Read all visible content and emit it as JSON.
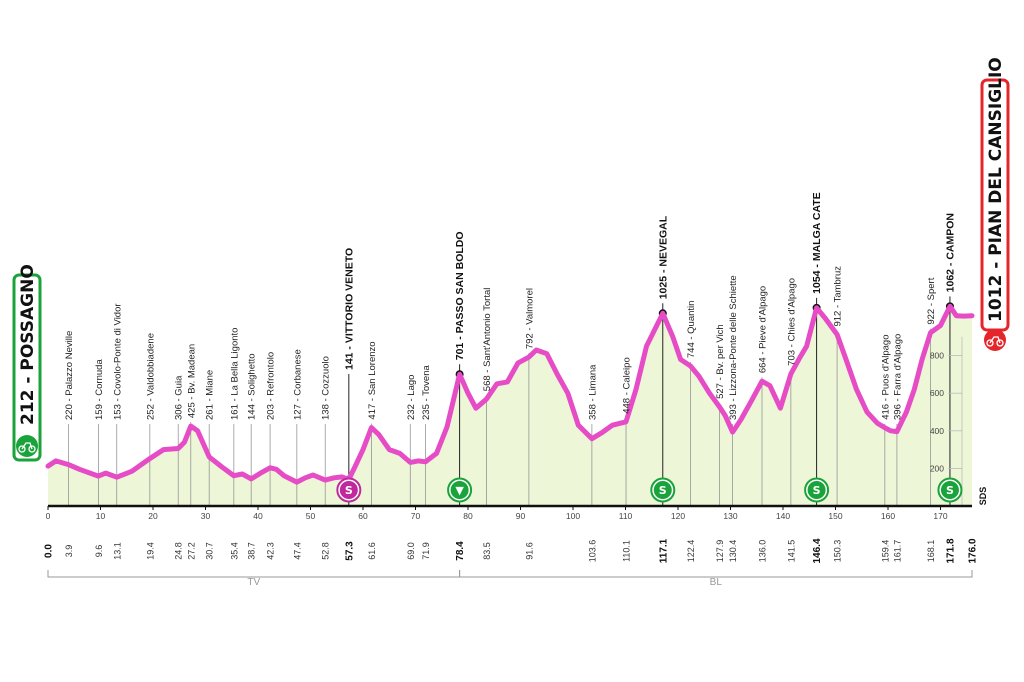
{
  "chart_data": {
    "type": "area",
    "xlim": [
      0,
      176
    ],
    "ylim": [
      0,
      1000
    ],
    "x_ticks": [
      0,
      10,
      20,
      30,
      40,
      50,
      60,
      70,
      80,
      90,
      100,
      110,
      120,
      130,
      140,
      150,
      160,
      170
    ],
    "y_ticks": [
      200,
      400,
      600,
      800
    ],
    "colors": {
      "profile_line": "#e64cc6",
      "profile_fill": "#eef6d8",
      "start_green": "#1aa33a",
      "finish_red": "#e4252a",
      "sprint_magenta": "#c0289e"
    },
    "profile": [
      [
        0,
        212
      ],
      [
        1.5,
        240
      ],
      [
        3.9,
        220
      ],
      [
        6,
        195
      ],
      [
        9.6,
        159
      ],
      [
        11,
        175
      ],
      [
        13.1,
        153
      ],
      [
        16,
        185
      ],
      [
        19.4,
        252
      ],
      [
        22,
        300
      ],
      [
        24.8,
        306
      ],
      [
        26,
        340
      ],
      [
        27.2,
        425
      ],
      [
        28.5,
        400
      ],
      [
        30.7,
        261
      ],
      [
        33,
        210
      ],
      [
        35.4,
        161
      ],
      [
        37,
        170
      ],
      [
        38.7,
        144
      ],
      [
        40.5,
        175
      ],
      [
        42.3,
        203
      ],
      [
        43.5,
        195
      ],
      [
        45,
        160
      ],
      [
        47.4,
        127
      ],
      [
        49,
        150
      ],
      [
        50.5,
        165
      ],
      [
        52.8,
        138
      ],
      [
        54.5,
        150
      ],
      [
        56,
        155
      ],
      [
        57.3,
        141
      ],
      [
        58.5,
        210
      ],
      [
        60,
        300
      ],
      [
        61.6,
        417
      ],
      [
        63,
        380
      ],
      [
        65,
        300
      ],
      [
        67,
        280
      ],
      [
        69,
        232
      ],
      [
        70.5,
        240
      ],
      [
        71.9,
        235
      ],
      [
        74,
        280
      ],
      [
        76,
        420
      ],
      [
        78.4,
        701
      ],
      [
        80,
        600
      ],
      [
        81.5,
        520
      ],
      [
        83.5,
        568
      ],
      [
        85.5,
        650
      ],
      [
        87.5,
        660
      ],
      [
        89.5,
        760
      ],
      [
        91.6,
        792
      ],
      [
        93,
        830
      ],
      [
        95,
        810
      ],
      [
        97,
        700
      ],
      [
        99,
        600
      ],
      [
        101,
        430
      ],
      [
        103.6,
        358
      ],
      [
        105.5,
        390
      ],
      [
        107.5,
        430
      ],
      [
        110.1,
        448
      ],
      [
        112,
        620
      ],
      [
        114,
        850
      ],
      [
        117.1,
        1025
      ],
      [
        119,
        900
      ],
      [
        120.5,
        780
      ],
      [
        122.4,
        744
      ],
      [
        124,
        690
      ],
      [
        126,
        600
      ],
      [
        127.9,
        527
      ],
      [
        129,
        480
      ],
      [
        130.4,
        393
      ],
      [
        132,
        460
      ],
      [
        134,
        560
      ],
      [
        136,
        664
      ],
      [
        137.5,
        640
      ],
      [
        139.5,
        520
      ],
      [
        141.5,
        703
      ],
      [
        143,
        780
      ],
      [
        144.5,
        850
      ],
      [
        146.4,
        1054
      ],
      [
        148,
        1000
      ],
      [
        150.3,
        912
      ],
      [
        152,
        780
      ],
      [
        154,
        620
      ],
      [
        156,
        500
      ],
      [
        158,
        440
      ],
      [
        159.4,
        416
      ],
      [
        160.5,
        400
      ],
      [
        161.7,
        396
      ],
      [
        163.5,
        500
      ],
      [
        165,
        620
      ],
      [
        166.5,
        780
      ],
      [
        168.1,
        922
      ],
      [
        170,
        960
      ],
      [
        171.8,
        1062
      ],
      [
        173,
        1012
      ],
      [
        174.5,
        1010
      ],
      [
        176,
        1012
      ]
    ],
    "waypoints": [
      {
        "km": "3.9",
        "x": 3.9,
        "alt": "220",
        "name": "Palazzo Neville",
        "bold": false
      },
      {
        "km": "9.6",
        "x": 9.6,
        "alt": "159",
        "name": "Cornuda",
        "bold": false
      },
      {
        "km": "13.1",
        "x": 13.1,
        "alt": "153",
        "name": "Covolo-Ponte di Vidor",
        "bold": false
      },
      {
        "km": "19.4",
        "x": 19.4,
        "alt": "252",
        "name": "Valdobbiadene",
        "bold": false
      },
      {
        "km": "24.8",
        "x": 24.8,
        "alt": "306",
        "name": "Guia",
        "bold": false
      },
      {
        "km": "27.2",
        "x": 27.2,
        "alt": "425",
        "name": "Bv. Madean",
        "bold": false
      },
      {
        "km": "30.7",
        "x": 30.7,
        "alt": "261",
        "name": "Miane",
        "bold": false
      },
      {
        "km": "35.4",
        "x": 35.4,
        "alt": "161",
        "name": "La Bella Ligonto",
        "bold": false
      },
      {
        "km": "38.7",
        "x": 38.7,
        "alt": "144",
        "name": "Solighetto",
        "bold": false
      },
      {
        "km": "42.3",
        "x": 42.3,
        "alt": "203",
        "name": "Refrontolo",
        "bold": false
      },
      {
        "km": "47.4",
        "x": 47.4,
        "alt": "127",
        "name": "Corbanese",
        "bold": false
      },
      {
        "km": "52.8",
        "x": 52.8,
        "alt": "138",
        "name": "Cozzuolo",
        "bold": false
      },
      {
        "km": "57.3",
        "x": 57.3,
        "alt": "141",
        "name": "VITTORIO VENETO",
        "bold": true
      },
      {
        "km": "61.6",
        "x": 61.6,
        "alt": "417",
        "name": "San Lorenzo",
        "bold": false
      },
      {
        "km": "69.0",
        "x": 69.0,
        "alt": "232",
        "name": "Lago",
        "bold": false
      },
      {
        "km": "71.9",
        "x": 71.9,
        "alt": "235",
        "name": "Tovena",
        "bold": false
      },
      {
        "km": "78.4",
        "x": 78.4,
        "alt": "701",
        "name": "PASSO SAN BOLDO",
        "bold": true
      },
      {
        "km": "83.5",
        "x": 83.5,
        "alt": "568",
        "name": "Sant'Antonio Tortal",
        "bold": false
      },
      {
        "km": "91.6",
        "x": 91.6,
        "alt": "792",
        "name": "Valmorel",
        "bold": false
      },
      {
        "km": "103.6",
        "x": 103.6,
        "alt": "358",
        "name": "Limana",
        "bold": false
      },
      {
        "km": "110.1",
        "x": 110.1,
        "alt": "448",
        "name": "Caleipo",
        "bold": false
      },
      {
        "km": "117.1",
        "x": 117.1,
        "alt": "1025",
        "name": "NEVEGAL",
        "bold": true
      },
      {
        "km": "122.4",
        "x": 122.4,
        "alt": "744",
        "name": "Quantin",
        "bold": false
      },
      {
        "km": "127.9",
        "x": 127.9,
        "alt": "527",
        "name": "Bv. per Vich",
        "bold": false
      },
      {
        "km": "130.4",
        "x": 130.4,
        "alt": "393",
        "name": "Lizzona-Ponte delle Schiette",
        "bold": false
      },
      {
        "km": "136.0",
        "x": 136.0,
        "alt": "664",
        "name": "Pieve d'Alpago",
        "bold": false
      },
      {
        "km": "141.5",
        "x": 141.5,
        "alt": "703",
        "name": "Chies d'Alpago",
        "bold": false
      },
      {
        "km": "146.4",
        "x": 146.4,
        "alt": "1054",
        "name": "MALGA CATE",
        "bold": true
      },
      {
        "km": "150.3",
        "x": 150.3,
        "alt": "912",
        "name": "Tambruz",
        "bold": false
      },
      {
        "km": "159.4",
        "x": 159.4,
        "alt": "416",
        "name": "Puos d'Alpago",
        "bold": false
      },
      {
        "km": "161.7",
        "x": 161.7,
        "alt": "396",
        "name": "Farra d'Alpago",
        "bold": false
      },
      {
        "km": "168.1",
        "x": 168.1,
        "alt": "922",
        "name": "Spert",
        "bold": false
      },
      {
        "km": "171.8",
        "x": 171.8,
        "alt": "1062",
        "name": "CAMPON",
        "bold": true
      }
    ],
    "start": {
      "km": "0.0",
      "alt": "212",
      "name": "POSSAGNO"
    },
    "finish": {
      "km": "176.0",
      "alt": "1012",
      "name": "PIAN DEL CANSIGLIO"
    },
    "markers": [
      {
        "km": 57.3,
        "type": "sprint",
        "symbol": "S"
      },
      {
        "km": 78.4,
        "type": "kom",
        "symbol": "▼"
      },
      {
        "km": 117.1,
        "type": "kom",
        "symbol": "S"
      },
      {
        "km": 146.4,
        "type": "kom",
        "symbol": "S"
      },
      {
        "km": 171.8,
        "type": "kom",
        "symbol": "S"
      }
    ],
    "regions": [
      {
        "label": "TV",
        "from": 0,
        "to": 78.4
      },
      {
        "label": "BL",
        "from": 78.4,
        "to": 176
      }
    ],
    "brand": "SDS"
  }
}
